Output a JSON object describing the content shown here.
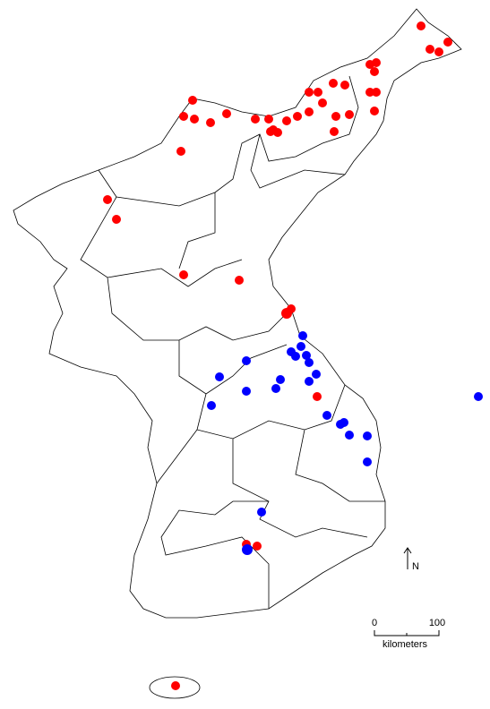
{
  "scale_bar": {
    "start_label": "0",
    "end_label": "100",
    "unit": "kilometers"
  },
  "north_arrow": {
    "label": "N"
  }
}
